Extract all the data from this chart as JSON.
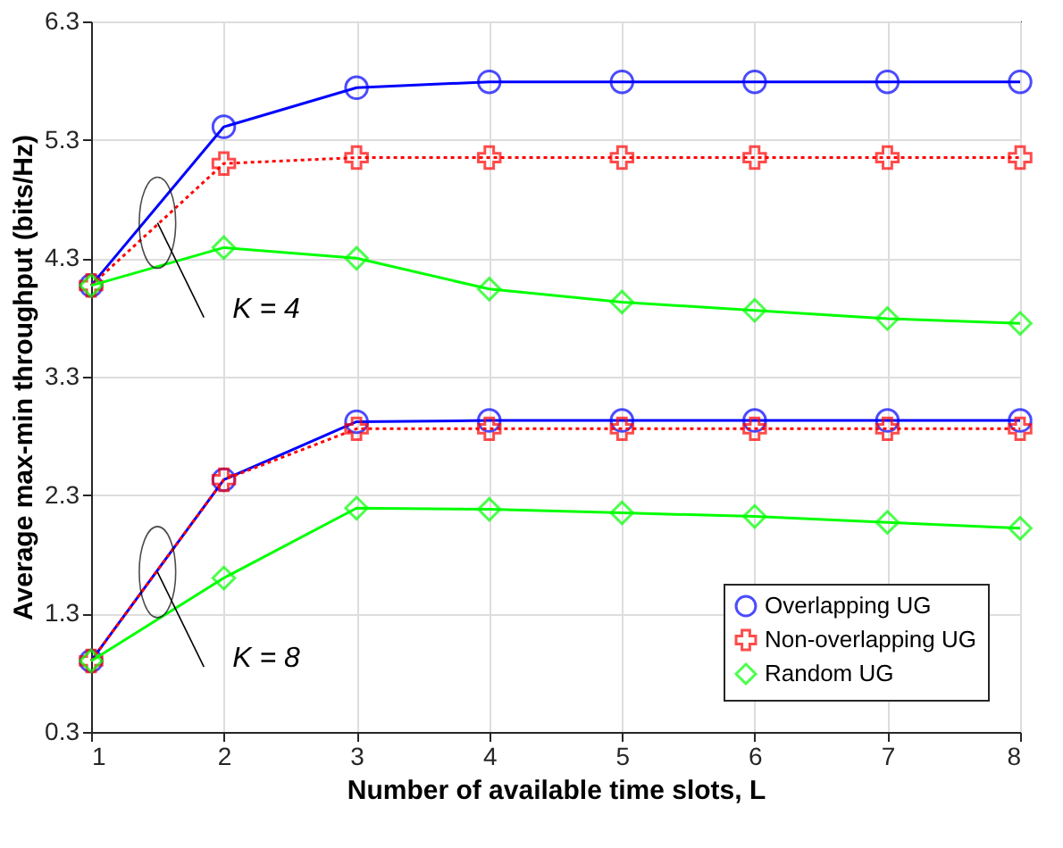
{
  "chart_data": {
    "type": "line",
    "xlabel": "Number of available time slots, L",
    "ylabel": "Average max-min throughput (bits/Hz)",
    "x": [
      1,
      2,
      3,
      4,
      5,
      6,
      7,
      8
    ],
    "xlim": [
      1,
      8
    ],
    "xticks": [
      1,
      2,
      3,
      4,
      5,
      6,
      7,
      8
    ],
    "ylim": [
      0.3,
      6.3
    ],
    "yticks": [
      0.3,
      1.3,
      2.3,
      3.3,
      4.3,
      5.3,
      6.3
    ],
    "grid": true,
    "legend": "bottom right",
    "series": [
      {
        "name": "Overlapping UG",
        "color": "#0000ff",
        "marker": "circle",
        "line_style": "solid",
        "values": [
          4.07,
          5.41,
          5.74,
          5.79,
          5.79,
          5.79,
          5.79,
          5.79
        ]
      },
      {
        "name": "Non-overlapping UG",
        "color": "#ff0000",
        "marker": "cross",
        "line_style": "dotted",
        "values": [
          4.07,
          5.1,
          5.15,
          5.15,
          5.15,
          5.15,
          5.15,
          5.15
        ]
      },
      {
        "name": "Random UG",
        "color": "#00ff00",
        "marker": "diamond",
        "line_style": "solid",
        "values": [
          4.07,
          4.39,
          4.3,
          4.04,
          3.93,
          3.86,
          3.79,
          3.75
        ]
      },
      {
        "color": "#0000ff",
        "marker": "circle",
        "line_style": "solid",
        "values": [
          0.9,
          2.43,
          2.92,
          2.93,
          2.93,
          2.93,
          2.93,
          2.93
        ]
      },
      {
        "color": "#ff0000",
        "marker": "cross",
        "line_style": "dotted",
        "values": [
          0.9,
          2.43,
          2.86,
          2.86,
          2.86,
          2.86,
          2.86,
          2.86
        ]
      },
      {
        "color": "#00ff00",
        "marker": "diamond",
        "line_style": "solid",
        "values": [
          0.9,
          1.6,
          2.19,
          2.18,
          2.15,
          2.12,
          2.07,
          2.02
        ]
      }
    ],
    "annotations": [
      {
        "text": "K = 4",
        "x": 1.5,
        "y": 4.6
      },
      {
        "text": "K = 8",
        "x": 1.5,
        "y": 1.65
      }
    ]
  }
}
